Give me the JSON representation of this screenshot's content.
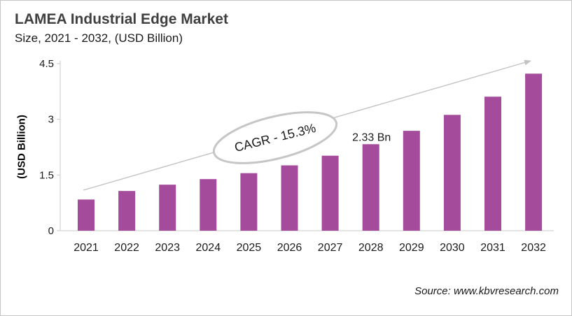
{
  "header": {
    "title": "LAMEA Industrial Edge Market",
    "subtitle": "Size, 2021 - 2032, (USD Billion)"
  },
  "chart_data": {
    "type": "bar",
    "title": "LAMEA Industrial Edge Market",
    "subtitle": "Size, 2021 - 2032, (USD Billion)",
    "categories": [
      "2021",
      "2022",
      "2023",
      "2024",
      "2025",
      "2026",
      "2027",
      "2028",
      "2029",
      "2030",
      "2031",
      "2032"
    ],
    "values": [
      0.84,
      1.07,
      1.24,
      1.39,
      1.55,
      1.76,
      2.02,
      2.33,
      2.69,
      3.12,
      3.61,
      4.23
    ],
    "xlabel": "",
    "ylabel": "(USD Billion)",
    "ylim": [
      0,
      4.5
    ],
    "yticks": [
      0,
      1.5,
      3,
      4.5
    ],
    "ytick_labels": [
      "0",
      "1.5",
      "3",
      "4.5"
    ],
    "grid": false,
    "legend": false,
    "bar_color": "#a54b9b",
    "axis_color": "#c9c9c9",
    "tick_text_color": "#1a1a1a",
    "annotations": {
      "cagr_label": "CAGR - 15.3%",
      "cagr_text_color": "#1a1a1a",
      "ellipse_stroke_color": "#c6c6c6",
      "trend_arrow": true,
      "trend_arrow_color": "#c3c3c3",
      "value_label": "2.33 Bn",
      "value_label_category": "2028",
      "value_label_color": "#1a1a1a"
    }
  },
  "source": {
    "text": "Source: www.kbvresearch.com"
  }
}
